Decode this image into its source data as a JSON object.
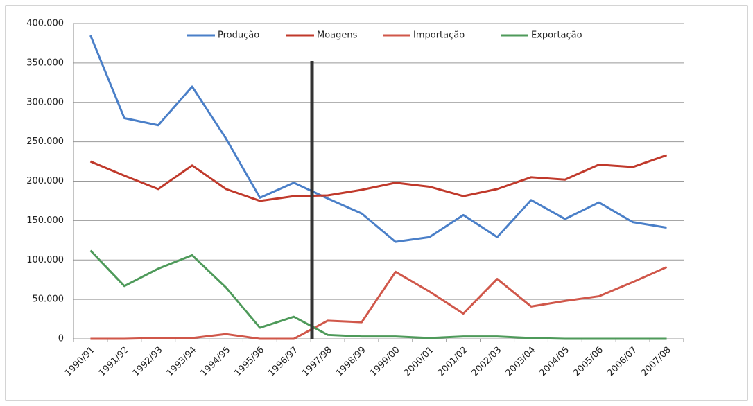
{
  "chart_data": {
    "type": "line",
    "categories": [
      "1990/91",
      "1991/92",
      "1992/93",
      "1993/94",
      "1994/95",
      "1995/96",
      "1996/97",
      "1997/98",
      "1998/99",
      "1999/00",
      "2000/01",
      "2001/02",
      "2002/03",
      "2003/04",
      "2004/05",
      "2005/06",
      "2006/07",
      "2007/08"
    ],
    "series": [
      {
        "name": "Produção",
        "color": "#4a7fc8",
        "values": [
          385000,
          280000,
          271000,
          320000,
          254000,
          179000,
          198000,
          178000,
          159000,
          123000,
          129000,
          157000,
          129000,
          176000,
          152000,
          173000,
          148000,
          141000
        ]
      },
      {
        "name": "Moagens",
        "color": "#c0392b",
        "values": [
          225000,
          207000,
          190000,
          220000,
          190000,
          175000,
          181000,
          182000,
          189000,
          198000,
          193000,
          181000,
          190000,
          205000,
          202000,
          221000,
          218000,
          233000
        ]
      },
      {
        "name": "Importação",
        "color": "#d0574a",
        "values": [
          0,
          0,
          1000,
          1000,
          6000,
          0,
          0,
          23000,
          21000,
          85000,
          60000,
          32000,
          76000,
          41000,
          48000,
          54000,
          72000,
          91000
        ]
      },
      {
        "name": "Exportação",
        "color": "#4e9a5a",
        "values": [
          112000,
          67000,
          89000,
          106000,
          65000,
          14000,
          28000,
          5000,
          3000,
          3000,
          1000,
          3000,
          3000,
          1000,
          0,
          0,
          0,
          0
        ]
      }
    ],
    "ylim": [
      0,
      400000
    ],
    "yticks": [
      0,
      {
        "value": 50000,
        "label": "50.000"
      },
      {
        "value": 100000,
        "label": "100.000"
      },
      {
        "value": 150000,
        "label": "150.000"
      },
      {
        "value": 200000,
        "label": "200.000"
      },
      {
        "value": 250000,
        "label": "250.000"
      },
      {
        "value": 300000,
        "label": "300.000"
      },
      {
        "value": 350000,
        "label": "350.000"
      },
      {
        "value": 400000,
        "label": "400.000"
      }
    ],
    "grid": true,
    "legend": "top"
  }
}
